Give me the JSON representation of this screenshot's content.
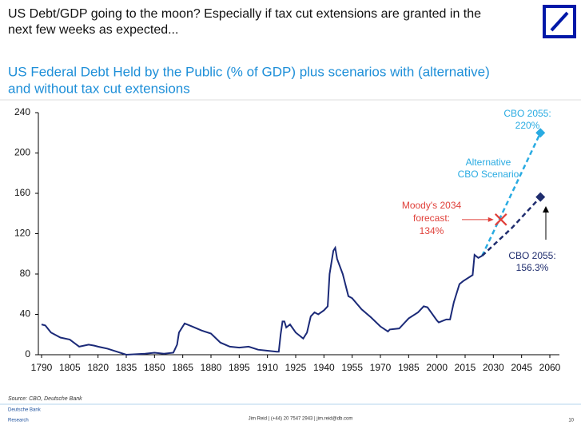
{
  "header": {
    "title": [
      "US Debt/GDP going to the moon? Especially if tax cut extensions are granted in the",
      "next few weeks as expected..."
    ]
  },
  "chart_data": {
    "type": "line",
    "title": [
      "US Federal Debt Held by the Public (% of GDP) plus scenarios with (alternative)",
      "and without tax cut extensions"
    ],
    "xlim": [
      1790,
      2060
    ],
    "xticks": [
      1790,
      1805,
      1820,
      1835,
      1850,
      1865,
      1880,
      1895,
      1910,
      1925,
      1940,
      1955,
      1970,
      1985,
      2000,
      2015,
      2030,
      2045,
      2060
    ],
    "ylim": [
      0,
      240
    ],
    "yticks": [
      0,
      40,
      80,
      120,
      160,
      200,
      240
    ],
    "series": [
      {
        "color": "#1b2a78",
        "x": [
          1790,
          1792,
          1795,
          1800,
          1805,
          1810,
          1815,
          1818,
          1820,
          1825,
          1830,
          1835,
          1840,
          1845,
          1850,
          1855,
          1860,
          1862,
          1863,
          1866,
          1870,
          1875,
          1880,
          1885,
          1890,
          1895,
          1900,
          1905,
          1910,
          1915,
          1916,
          1917,
          1918,
          1919,
          1920,
          1922,
          1925,
          1929,
          1931,
          1933,
          1935,
          1937,
          1940,
          1942,
          1943,
          1945,
          1946,
          1947,
          1950,
          1953,
          1955,
          1960,
          1965,
          1970,
          1974,
          1975,
          1980,
          1985,
          1990,
          1993,
          1995,
          2000,
          2001,
          2005,
          2007,
          2009,
          2012,
          2014,
          2019,
          2020,
          2022,
          2024
        ],
        "values": [
          30,
          29,
          22,
          17,
          15,
          8,
          10,
          9,
          8,
          6,
          3,
          0,
          0.5,
          1,
          2,
          1,
          2,
          10,
          22,
          31,
          28,
          24,
          21,
          12,
          8,
          7,
          8,
          5,
          4,
          3,
          3,
          20,
          33,
          33,
          27,
          30,
          22,
          16,
          22,
          38,
          42,
          40,
          44,
          48,
          80,
          103,
          106,
          95,
          80,
          58,
          56,
          45,
          37,
          28,
          23,
          25,
          26,
          36,
          42,
          48,
          47,
          34,
          32,
          35,
          35,
          52,
          70,
          73,
          79,
          99,
          96,
          98
        ]
      },
      {
        "color": "#29abe2",
        "dash": true,
        "x": [
          2024,
          2055
        ],
        "values": [
          98,
          220
        ],
        "end_label": [
          "CBO 2055:",
          "220%"
        ],
        "labels": [
          "Alternative",
          "CBO Scenario"
        ]
      },
      {
        "color": "#1f2d6e",
        "dash": true,
        "x": [
          2024,
          2040,
          2055
        ],
        "values": [
          98,
          126,
          156.3
        ],
        "end_label": [
          "CBO 2055:",
          "156.3%"
        ]
      }
    ],
    "markers": [
      {
        "x": 2034,
        "value": 134,
        "color": "#e0403a",
        "label": [
          "Moody's 2034",
          "forecast:",
          "134%"
        ]
      }
    ],
    "source": "Source: CBO, Deutsche Bank"
  },
  "footer": {
    "brand": "Deutsche Bank",
    "unit": "Research",
    "contact": "Jim Reid | (+44) 20 7547 2943 | jim.reid@db.com",
    "page": "10"
  }
}
